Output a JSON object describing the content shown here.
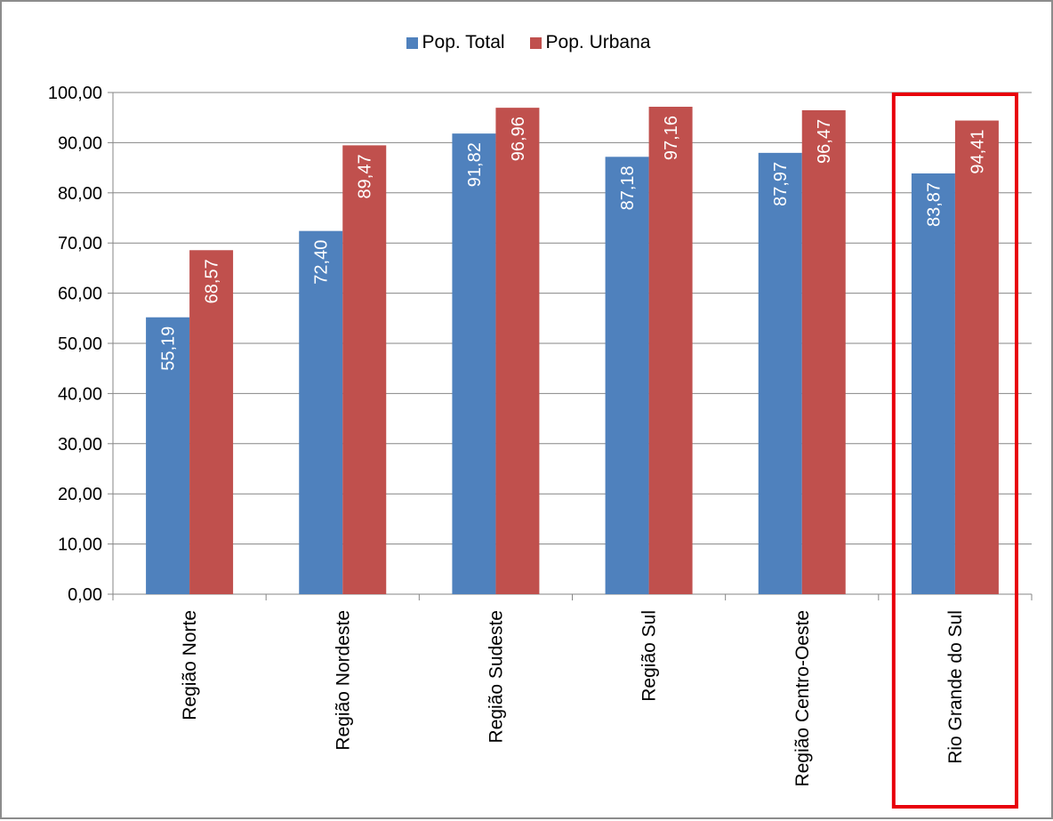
{
  "chart_data": {
    "type": "bar",
    "categories": [
      "Região Norte",
      "Região Nordeste",
      "Região Sudeste",
      "Região Sul",
      "Região Centro-Oeste",
      "Rio Grande do Sul"
    ],
    "series": [
      {
        "name": "Pop. Total",
        "color": "#4f81bd",
        "values": [
          55.19,
          72.4,
          91.82,
          87.18,
          87.97,
          83.87
        ],
        "labels": [
          "55,19",
          "72,40",
          "91,82",
          "87,18",
          "87,97",
          "83,87"
        ]
      },
      {
        "name": "Pop. Urbana",
        "color": "#c0504d",
        "values": [
          68.57,
          89.47,
          96.96,
          97.16,
          96.47,
          94.41
        ],
        "labels": [
          "68,57",
          "89,47",
          "96,96",
          "97,16",
          "96,47",
          "94,41"
        ]
      }
    ],
    "yticks": [
      "0,00",
      "10,00",
      "20,00",
      "30,00",
      "40,00",
      "50,00",
      "60,00",
      "70,00",
      "80,00",
      "90,00",
      "100,00"
    ],
    "ylim": [
      0,
      100
    ],
    "grid": true,
    "legend_position": "top",
    "highlight_category": "Rio Grande do Sul",
    "highlight_color": "#e8000b"
  }
}
